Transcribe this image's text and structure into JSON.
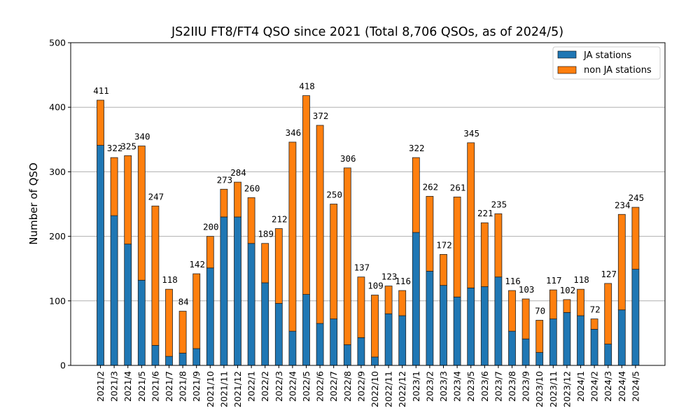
{
  "chart_data": {
    "type": "bar",
    "stacked": true,
    "title": "JS2IIU FT8/FT4 QSO since 2021 (Total 8,706 QSOs, as of 2024/5)",
    "xlabel": "",
    "ylabel": "Number of QSO",
    "ylim": [
      0,
      500
    ],
    "yticks": [
      0,
      100,
      200,
      300,
      400,
      500
    ],
    "grid": "y",
    "legend_position": "top-right",
    "categories": [
      "2021/2",
      "2021/3",
      "2021/4",
      "2021/5",
      "2021/6",
      "2021/7",
      "2021/8",
      "2021/9",
      "2021/10",
      "2021/11",
      "2021/12",
      "2022/1",
      "2022/2",
      "2022/3",
      "2022/4",
      "2022/5",
      "2022/6",
      "2022/7",
      "2022/8",
      "2022/9",
      "2022/10",
      "2022/11",
      "2022/12",
      "2023/1",
      "2023/2",
      "2023/3",
      "2023/4",
      "2023/5",
      "2023/6",
      "2023/7",
      "2023/8",
      "2023/9",
      "2023/10",
      "2023/11",
      "2023/12",
      "2024/1",
      "2024/2",
      "2024/3",
      "2024/4",
      "2024/5"
    ],
    "totals": [
      411,
      322,
      325,
      340,
      247,
      118,
      84,
      142,
      200,
      273,
      284,
      260,
      189,
      212,
      346,
      418,
      372,
      250,
      306,
      137,
      109,
      123,
      116,
      322,
      262,
      172,
      261,
      345,
      221,
      235,
      116,
      103,
      70,
      117,
      102,
      118,
      72,
      127,
      234,
      245
    ],
    "series": [
      {
        "name": "JA stations",
        "color": "#1f77b4",
        "values": [
          341,
          232,
          188,
          132,
          31,
          14,
          19,
          26,
          151,
          230,
          230,
          189,
          128,
          96,
          53,
          110,
          65,
          72,
          32,
          43,
          13,
          80,
          77,
          206,
          146,
          124,
          106,
          120,
          122,
          137,
          53,
          41,
          20,
          72,
          82,
          77,
          56,
          33,
          86,
          149
        ]
      },
      {
        "name": "non JA stations",
        "color": "#ff7f0e",
        "values": [
          70,
          90,
          137,
          208,
          216,
          104,
          65,
          116,
          49,
          43,
          54,
          71,
          61,
          116,
          293,
          308,
          307,
          178,
          274,
          94,
          96,
          43,
          39,
          116,
          116,
          48,
          155,
          225,
          99,
          98,
          63,
          62,
          50,
          45,
          20,
          41,
          16,
          94,
          148,
          96
        ]
      }
    ]
  }
}
